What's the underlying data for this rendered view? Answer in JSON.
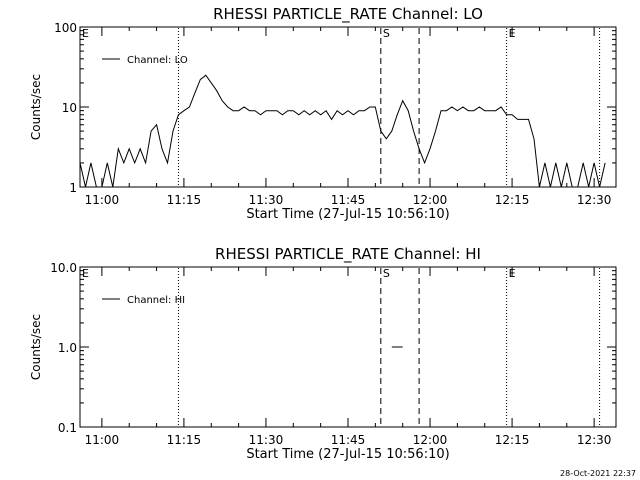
{
  "colors": {
    "background": "#ffffff",
    "foreground": "#000000"
  },
  "timestamp": "28-Oct-2021 22:37",
  "chart_data": [
    {
      "type": "line",
      "title": "RHESSI PARTICLE_RATE Channel: LO",
      "xlabel": "Start Time (27-Jul-15 10:56:10)",
      "ylabel": "Counts/sec",
      "yscale": "log",
      "ylim": [
        1,
        100
      ],
      "xlim": [
        "10:56",
        "12:34"
      ],
      "grid": false,
      "legend_position": "top-left",
      "x_ticks": [
        "11:00",
        "11:15",
        "11:30",
        "11:45",
        "12:00",
        "12:15",
        "12:30"
      ],
      "y_ticks": [
        "1",
        "10",
        "100"
      ],
      "markers": [
        {
          "label": "E",
          "x": "10:56",
          "style": "none"
        },
        {
          "label": "",
          "x": "11:14",
          "style": "dotted"
        },
        {
          "label": "S",
          "x": "11:51",
          "style": "dashed"
        },
        {
          "label": "",
          "x": "11:58",
          "style": "dashed"
        },
        {
          "label": "E",
          "x": "12:14",
          "style": "dotted"
        },
        {
          "label": "",
          "x": "12:31",
          "style": "dotted"
        }
      ],
      "series": [
        {
          "name": "Channel: LO",
          "x": [
            "10:56",
            "10:57",
            "10:58",
            "10:59",
            "11:00",
            "11:01",
            "11:02",
            "11:03",
            "11:04",
            "11:05",
            "11:06",
            "11:07",
            "11:08",
            "11:09",
            "11:10",
            "11:11",
            "11:12",
            "11:13",
            "11:14",
            "11:15",
            "11:16",
            "11:17",
            "11:18",
            "11:19",
            "11:20",
            "11:21",
            "11:22",
            "11:23",
            "11:24",
            "11:25",
            "11:26",
            "11:27",
            "11:28",
            "11:29",
            "11:30",
            "11:31",
            "11:32",
            "11:33",
            "11:34",
            "11:35",
            "11:36",
            "11:37",
            "11:38",
            "11:39",
            "11:40",
            "11:41",
            "11:42",
            "11:43",
            "11:44",
            "11:45",
            "11:46",
            "11:47",
            "11:48",
            "11:49",
            "11:50",
            "11:51",
            "11:52",
            "11:53",
            "11:54",
            "11:55",
            "11:56",
            "11:57",
            "11:58",
            "11:59",
            "12:00",
            "12:01",
            "12:02",
            "12:03",
            "12:04",
            "12:05",
            "12:06",
            "12:07",
            "12:08",
            "12:09",
            "12:10",
            "12:11",
            "12:12",
            "12:13",
            "12:14",
            "12:15",
            "12:16",
            "12:17",
            "12:18",
            "12:19",
            "12:20",
            "12:21",
            "12:22",
            "12:23",
            "12:24",
            "12:25",
            "12:26",
            "12:27",
            "12:28",
            "12:29",
            "12:30",
            "12:31",
            "12:32"
          ],
          "y": [
            2,
            1,
            2,
            1,
            1,
            2,
            1,
            3,
            2,
            3,
            2,
            3,
            2,
            5,
            6,
            3,
            2,
            5,
            8,
            9,
            10,
            15,
            22,
            25,
            20,
            16,
            12,
            10,
            9,
            9,
            10,
            9,
            9,
            8,
            9,
            9,
            9,
            8,
            9,
            9,
            8,
            9,
            8,
            9,
            8,
            9,
            7,
            9,
            8,
            9,
            8,
            9,
            9,
            10,
            10,
            5,
            4,
            5,
            8,
            12,
            9,
            5,
            3,
            2,
            3,
            5,
            9,
            9,
            10,
            9,
            10,
            9,
            9,
            10,
            9,
            9,
            9,
            10,
            8,
            8,
            7,
            7,
            7,
            4,
            1,
            2,
            1,
            2,
            1,
            2,
            1,
            1,
            2,
            1,
            2,
            1,
            2
          ]
        }
      ]
    },
    {
      "type": "line",
      "title": "RHESSI PARTICLE_RATE Channel: HI",
      "xlabel": "Start Time (27-Jul-15 10:56:10)",
      "ylabel": "Counts/sec",
      "yscale": "log",
      "ylim": [
        0.1,
        10
      ],
      "xlim": [
        "10:56",
        "12:34"
      ],
      "grid": false,
      "legend_position": "top-left",
      "x_ticks": [
        "11:00",
        "11:15",
        "11:30",
        "11:45",
        "12:00",
        "12:15",
        "12:30"
      ],
      "y_ticks": [
        "0.1",
        "1.0",
        "10.0"
      ],
      "markers": [
        {
          "label": "E",
          "x": "10:56",
          "style": "none"
        },
        {
          "label": "",
          "x": "11:14",
          "style": "dotted"
        },
        {
          "label": "S",
          "x": "11:51",
          "style": "dashed"
        },
        {
          "label": "",
          "x": "11:58",
          "style": "dashed"
        },
        {
          "label": "E",
          "x": "12:14",
          "style": "dotted"
        },
        {
          "label": "",
          "x": "12:31",
          "style": "dotted"
        }
      ],
      "series": [
        {
          "name": "Channel: HI",
          "x": [
            "11:53",
            "11:55"
          ],
          "y": [
            1,
            1
          ]
        }
      ]
    }
  ]
}
